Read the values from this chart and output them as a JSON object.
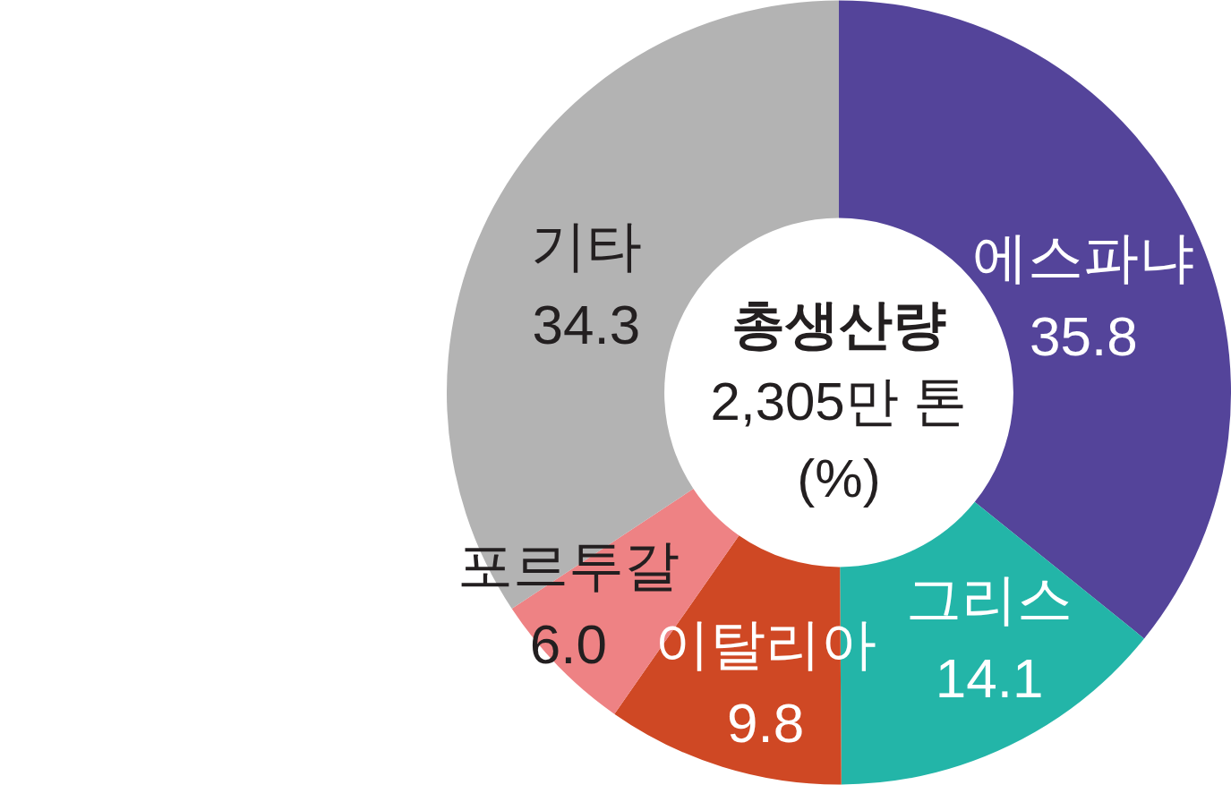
{
  "chart_data": {
    "type": "donut",
    "title": "총생산량",
    "subtitle": "2,305만 톤",
    "annotations": [
      "(%)"
    ],
    "categories": [
      "에스파냐",
      "그리스",
      "이탈리아",
      "포르투갈",
      "기타"
    ],
    "values": [
      35.8,
      14.1,
      9.8,
      6.0,
      34.3
    ],
    "colors": [
      "#54449a",
      "#23b5a8",
      "#cf4824",
      "#ee8284",
      "#b3b3b3"
    ],
    "value_labels": [
      "35.8",
      "14.1",
      "9.8",
      "6.0",
      "34.3"
    ]
  }
}
